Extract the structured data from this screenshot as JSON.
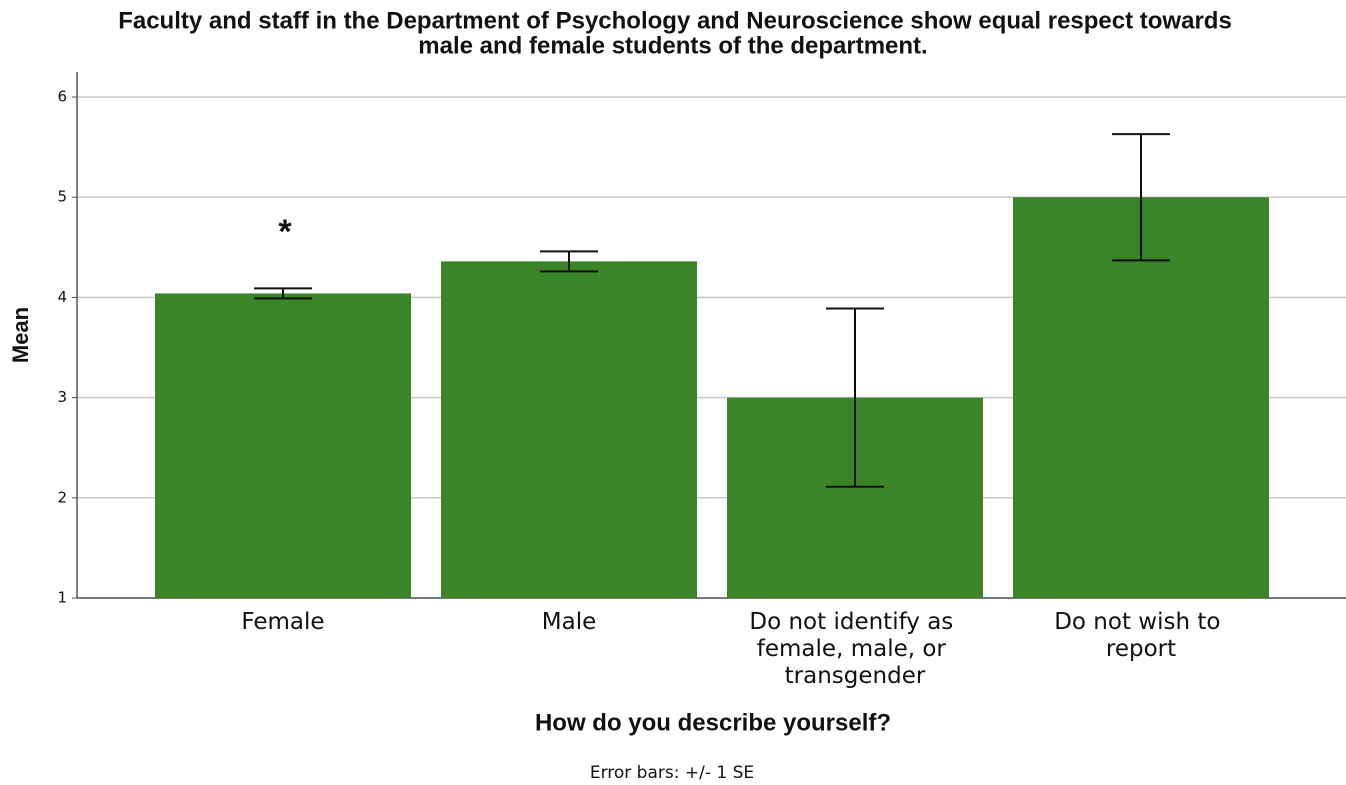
{
  "chart_data": {
    "type": "bar",
    "title": [
      "Faculty and staff in the Department of Psychology and Neuroscience show equal respect towards",
      "male and female students of the department."
    ],
    "xlabel": "How do you describe yourself?",
    "ylabel": "Mean",
    "note": "Error bars: +/- 1 SE",
    "categories": [
      "Female",
      "Male",
      "Do not identify as female, male, or transgender",
      "Do not wish to report"
    ],
    "values": [
      4.04,
      4.36,
      3.0,
      5.0
    ],
    "errors": [
      0.05,
      0.1,
      0.89,
      0.63
    ],
    "color": "#3b8427",
    "ylim": [
      1,
      6.25
    ],
    "yticks": [
      1,
      2,
      3,
      4,
      5,
      6
    ],
    "grid": true,
    "annotations": [
      {
        "text": "*",
        "category": "Female"
      }
    ]
  }
}
